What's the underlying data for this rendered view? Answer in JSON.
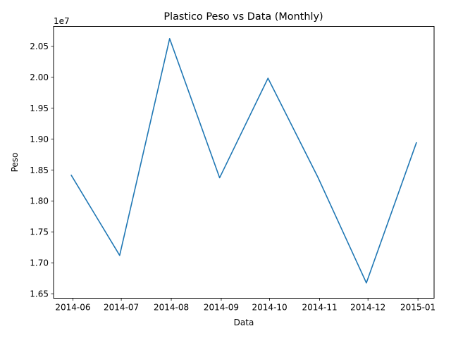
{
  "chart_data": {
    "type": "line",
    "title": "Plastico Peso vs Data (Monthly)",
    "xlabel": "Data",
    "ylabel": "Peso",
    "y_offset_label": "1e7",
    "y_scale": 10000000,
    "x": [
      "2014-05-31",
      "2014-06-30",
      "2014-07-31",
      "2014-08-31",
      "2014-09-30",
      "2014-10-31",
      "2014-11-30",
      "2014-12-31"
    ],
    "series": [
      {
        "values": [
          18415000,
          17120000,
          20625000,
          18375000,
          19985000,
          18380000,
          16675000,
          18940000
        ],
        "color": "#1f77b4"
      }
    ],
    "x_ticks": [
      {
        "value": "2014-06-01",
        "label": "2014-06"
      },
      {
        "value": "2014-07-01",
        "label": "2014-07"
      },
      {
        "value": "2014-08-01",
        "label": "2014-08"
      },
      {
        "value": "2014-09-01",
        "label": "2014-09"
      },
      {
        "value": "2014-10-01",
        "label": "2014-10"
      },
      {
        "value": "2014-11-01",
        "label": "2014-11"
      },
      {
        "value": "2014-12-01",
        "label": "2014-12"
      },
      {
        "value": "2015-01-01",
        "label": "2015-01"
      }
    ],
    "y_ticks": [
      {
        "value": 16500000,
        "label": "1.65"
      },
      {
        "value": 17000000,
        "label": "1.70"
      },
      {
        "value": 17500000,
        "label": "1.75"
      },
      {
        "value": 18000000,
        "label": "1.80"
      },
      {
        "value": 18500000,
        "label": "1.85"
      },
      {
        "value": 19000000,
        "label": "1.90"
      },
      {
        "value": 19500000,
        "label": "1.95"
      },
      {
        "value": 20000000,
        "label": "2.00"
      },
      {
        "value": 20500000,
        "label": "2.05"
      }
    ],
    "xlim": [
      "2014-05-20",
      "2015-01-11"
    ],
    "ylim": [
      16427500,
      20822500
    ],
    "grid": false,
    "legend": "none"
  }
}
